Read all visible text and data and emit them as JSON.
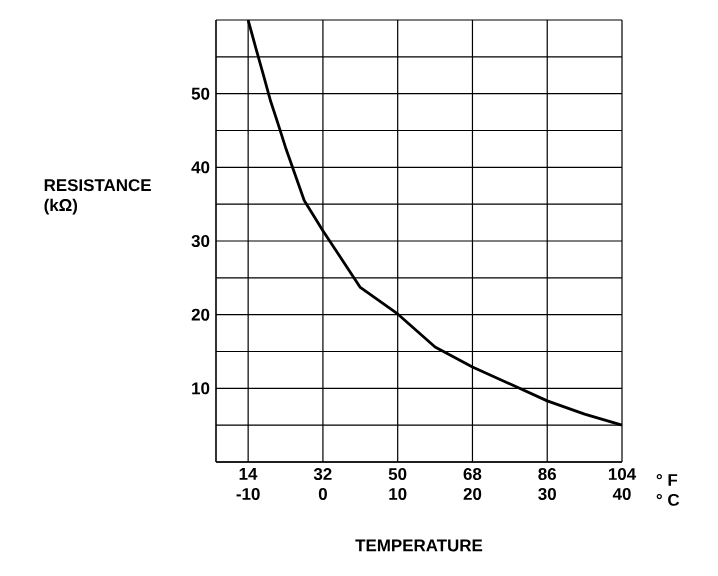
{
  "chart_data": {
    "type": "line",
    "xlabel": "TEMPERATURE",
    "ylabel": "RESISTANCE\n(kΩ)",
    "x2label": "° F",
    "annotations": [
      "° C"
    ],
    "x": [
      -10,
      -9,
      -8,
      -7,
      -6,
      -5,
      -2.5,
      0,
      5,
      10,
      15,
      20,
      25,
      30,
      35,
      40
    ],
    "series": [
      {
        "color": "#000000",
        "values": [
          60,
          56.3,
          52.7,
          49,
          45.9,
          42.7,
          35.5,
          31.4,
          23.7,
          20.1,
          15.6,
          12.9,
          10.6,
          8.3,
          6.5,
          5.0
        ]
      }
    ],
    "xlim": [
      -14.3,
      40
    ],
    "xticks": [
      -10,
      0,
      10,
      20,
      30,
      40
    ],
    "x2lim": [
      6.3,
      104
    ],
    "x2ticks": [
      14,
      32,
      50,
      68,
      86,
      104
    ],
    "ylim": [
      0,
      60
    ],
    "yticks": [
      {
        "value": 0,
        "label": null
      },
      {
        "value": 5,
        "label": null
      },
      10,
      {
        "value": 15,
        "label": null
      },
      20,
      {
        "value": 25,
        "label": null
      },
      30,
      {
        "value": 35,
        "label": null
      },
      40,
      {
        "value": 45,
        "label": null
      },
      50,
      {
        "value": 55,
        "label": null
      },
      {
        "value": 60,
        "label": null
      }
    ],
    "grid": true,
    "marker": "none",
    "line_style": "solid"
  }
}
